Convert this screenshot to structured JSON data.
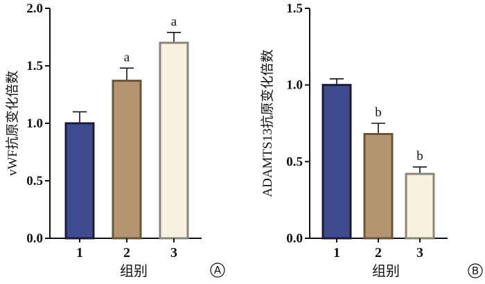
{
  "chart_data": [
    {
      "type": "bar",
      "panel_label": "A",
      "categories": [
        "1",
        "2",
        "3"
      ],
      "values": [
        1.0,
        1.37,
        1.7
      ],
      "errors": [
        0.1,
        0.11,
        0.09
      ],
      "significance": [
        "",
        "a",
        "a"
      ],
      "ylabel": "vWF抗原变化倍数",
      "xlabel": "组别",
      "ylim": [
        0,
        2.0
      ],
      "yticks": [
        "0.0",
        "0.5",
        "1.0",
        "1.5",
        "2.0"
      ],
      "bar_colors": [
        "#3e4b8f",
        "#b39671",
        "#f6f2df"
      ],
      "bar_edge_colors": [
        "#1a1d3a",
        "#6b5535",
        "#8a8479"
      ]
    },
    {
      "type": "bar",
      "panel_label": "B",
      "categories": [
        "1",
        "2",
        "3"
      ],
      "values": [
        1.0,
        0.68,
        0.42
      ],
      "errors": [
        0.04,
        0.07,
        0.045
      ],
      "significance": [
        "",
        "b",
        "b"
      ],
      "ylabel": "ADAMTS13抗原变化倍数",
      "xlabel": "组别",
      "ylim": [
        0,
        1.5
      ],
      "yticks": [
        "0.0",
        "0.5",
        "1.0",
        "1.5"
      ],
      "bar_colors": [
        "#3e4b8f",
        "#b39671",
        "#f6f2df"
      ],
      "bar_edge_colors": [
        "#1a1d3a",
        "#6b5535",
        "#8a8479"
      ]
    }
  ]
}
